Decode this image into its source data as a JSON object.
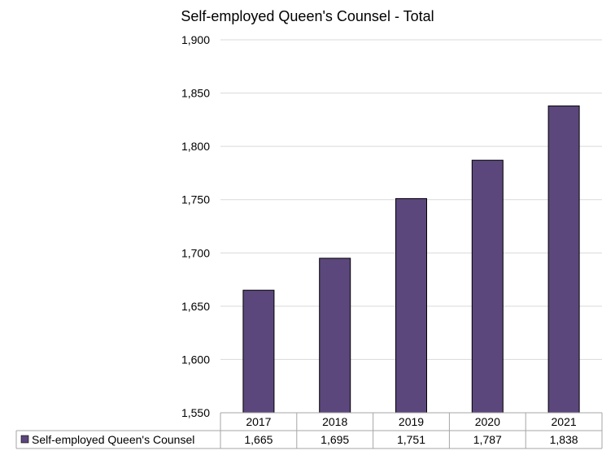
{
  "chart_data": {
    "type": "bar",
    "title": "Self-employed Queen's Counsel - Total",
    "categories": [
      "2017",
      "2018",
      "2019",
      "2020",
      "2021"
    ],
    "series": [
      {
        "name": "Self-employed Queen's Counsel",
        "values": [
          1665,
          1695,
          1751,
          1787,
          1838
        ],
        "color": "#5b477c"
      }
    ],
    "value_labels": [
      "1,665",
      "1,695",
      "1,751",
      "1,787",
      "1,838"
    ],
    "ylim": [
      1550,
      1900
    ],
    "yticks": [
      1550,
      1600,
      1650,
      1700,
      1750,
      1800,
      1850,
      1900
    ],
    "ytick_labels": [
      "1,550",
      "1,600",
      "1,650",
      "1,700",
      "1,750",
      "1,800",
      "1,850",
      "1,900"
    ],
    "grid": true,
    "legend": "data-table"
  }
}
